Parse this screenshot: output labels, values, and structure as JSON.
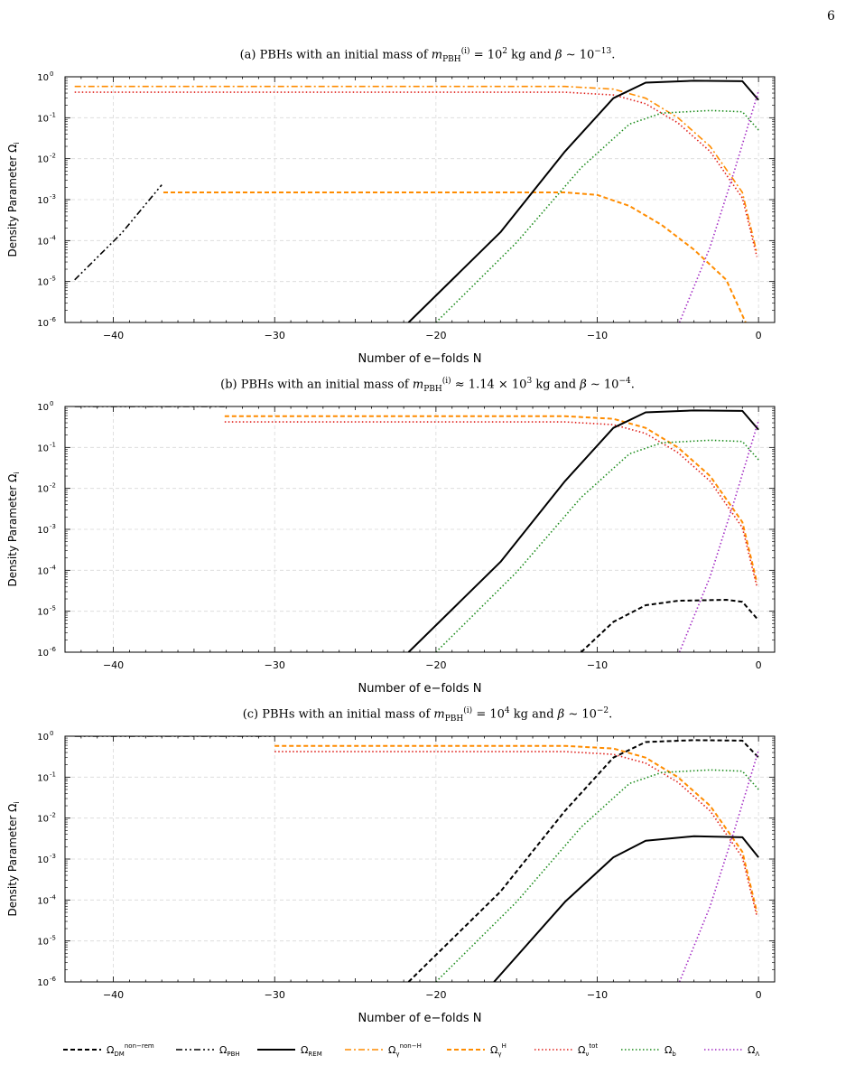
{
  "page_number": "6",
  "colors": {
    "dm_nonrem": "#000000",
    "pbh": "#000000",
    "rem": "#000000",
    "gamma_nonH": "#ff8c00",
    "gamma_H": "#ff8c00",
    "nu_tot": "#e0201b",
    "b": "#1c8c1c",
    "lambda": "#a32cc4"
  },
  "legend": [
    {
      "key": "dm_nonrem",
      "label_main": "Ω",
      "label_sub": "DM",
      "label_sup": "non−rem",
      "style": "dashed"
    },
    {
      "key": "pbh",
      "label_main": "Ω",
      "label_sub": "PBH",
      "label_sup": "",
      "style": "dashdotdot"
    },
    {
      "key": "rem",
      "label_main": "Ω",
      "label_sub": "REM",
      "label_sup": "",
      "style": "solid"
    },
    {
      "key": "gamma_nonH",
      "label_main": "Ω",
      "label_sub": "γ",
      "label_sup": "non−H",
      "style": "dashdot"
    },
    {
      "key": "gamma_H",
      "label_main": "Ω",
      "label_sub": "γ",
      "label_sup": "H",
      "style": "dashed"
    },
    {
      "key": "nu_tot",
      "label_main": "Ω",
      "label_sub": "ν",
      "label_sup": "tot",
      "style": "dotted"
    },
    {
      "key": "b",
      "label_main": "Ω",
      "label_sub": "b",
      "label_sup": "",
      "style": "dotted"
    },
    {
      "key": "lambda",
      "label_main": "Ω",
      "label_sub": "Λ",
      "label_sup": "",
      "style": "dotted"
    }
  ],
  "chart_data": [
    {
      "type": "line",
      "title_prefix": "(a) PBHs with an initial mass of",
      "title_math": "m_PBH^(i) = 10^2 kg and β ~ 10^−13.",
      "title_mass": "= 10",
      "title_mass_exp": "2",
      "title_beta_exp": "−13",
      "xlabel": "Number of e−folds N",
      "ylabel": "Density Parameter Ω",
      "ylabel_sub": "i",
      "xlim": [
        -43,
        1
      ],
      "ylim_log10": [
        -6,
        0
      ],
      "xticks": [
        -40,
        -30,
        -20,
        -10,
        0
      ],
      "yticks": [
        {
          "exp": -6,
          "label": "10",
          "sup": "-6"
        },
        {
          "exp": -5,
          "label": "10",
          "sup": "-5"
        },
        {
          "exp": -4,
          "label": "10",
          "sup": "-4"
        },
        {
          "exp": -3,
          "label": "10",
          "sup": "-3"
        },
        {
          "exp": -2,
          "label": "10",
          "sup": "-2"
        },
        {
          "exp": -1,
          "label": "10",
          "sup": "-1"
        },
        {
          "exp": 0,
          "label": "10",
          "sup": "0"
        }
      ],
      "grid": true,
      "series": [
        {
          "key": "pbh",
          "style": "dashdotdot",
          "points": [
            [
              -42.4,
              1.1e-05
            ],
            [
              -39.5,
              0.00015
            ],
            [
              -37.0,
              0.0023
            ]
          ]
        },
        {
          "key": "gamma_nonH",
          "style": "dashdot",
          "points": [
            [
              -42.4,
              0.58
            ],
            [
              -12,
              0.58
            ],
            [
              -9,
              0.5
            ],
            [
              -7,
              0.3
            ],
            [
              -5,
              0.1
            ],
            [
              -3,
              0.02
            ],
            [
              -1,
              0.0015
            ],
            [
              -0.1,
              5e-05
            ]
          ]
        },
        {
          "key": "nu_tot",
          "style": "dotted",
          "points": [
            [
              -42.4,
              0.42
            ],
            [
              -12,
              0.42
            ],
            [
              -9,
              0.36
            ],
            [
              -7,
              0.22
            ],
            [
              -5,
              0.075
            ],
            [
              -3,
              0.015
            ],
            [
              -1,
              0.0011
            ],
            [
              -0.1,
              4e-05
            ]
          ]
        },
        {
          "key": "gamma_H",
          "style": "dashed",
          "points": [
            [
              -36.9,
              0.0015
            ],
            [
              -12,
              0.0015
            ],
            [
              -10,
              0.0013
            ],
            [
              -8,
              0.0007
            ],
            [
              -6,
              0.00024
            ],
            [
              -4,
              6e-05
            ],
            [
              -2,
              1.1e-05
            ],
            [
              -0.8,
              1e-06
            ]
          ]
        },
        {
          "key": "rem",
          "style": "solid",
          "points": [
            [
              -21.7,
              1e-06
            ],
            [
              -16,
              0.00016
            ],
            [
              -12,
              0.015
            ],
            [
              -9,
              0.3
            ],
            [
              -7,
              0.72
            ],
            [
              -4,
              0.8
            ],
            [
              -1,
              0.78
            ],
            [
              0,
              0.27
            ]
          ]
        },
        {
          "key": "b",
          "style": "dotted",
          "points": [
            [
              -20,
              1e-06
            ],
            [
              -15,
              9e-05
            ],
            [
              -11,
              0.006
            ],
            [
              -8,
              0.07
            ],
            [
              -6,
              0.13
            ],
            [
              -3,
              0.15
            ],
            [
              -1,
              0.14
            ],
            [
              0,
              0.05
            ]
          ]
        },
        {
          "key": "lambda",
          "style": "dotted",
          "points": [
            [
              -4.9,
              1e-06
            ],
            [
              -3,
              7e-05
            ],
            [
              -1.5,
              0.005
            ],
            [
              0,
              0.45
            ]
          ]
        }
      ]
    },
    {
      "type": "line",
      "title_prefix": "(b) PBHs with an initial mass of",
      "title_math": "m_PBH^(i) ≈ 1.14 × 10^3 kg and β ~ 10^−4.",
      "title_mass": "≈ 1.14 × 10",
      "title_mass_exp": "3",
      "title_beta_exp": "−4",
      "xlabel": "Number of e−folds N",
      "ylabel": "Density Parameter Ω",
      "ylabel_sub": "i",
      "xlim": [
        -43,
        1
      ],
      "ylim_log10": [
        -6,
        0
      ],
      "xticks": [
        -40,
        -30,
        -20,
        -10,
        0
      ],
      "yticks": [
        {
          "exp": -6,
          "label": "10",
          "sup": "-6"
        },
        {
          "exp": -5,
          "label": "10",
          "sup": "-5"
        },
        {
          "exp": -4,
          "label": "10",
          "sup": "-4"
        },
        {
          "exp": -3,
          "label": "10",
          "sup": "-3"
        },
        {
          "exp": -2,
          "label": "10",
          "sup": "-2"
        },
        {
          "exp": -1,
          "label": "10",
          "sup": "-1"
        },
        {
          "exp": 0,
          "label": "10",
          "sup": "0"
        }
      ],
      "grid": true,
      "series": [
        {
          "key": "pbh",
          "style": "dashdotdot",
          "points": [
            [
              -42.4,
              1.0
            ],
            [
              -33.1,
              1.0
            ]
          ]
        },
        {
          "key": "gamma_H",
          "style": "dashed",
          "points": [
            [
              -33.1,
              0.58
            ],
            [
              -12,
              0.58
            ],
            [
              -9,
              0.5
            ],
            [
              -7,
              0.3
            ],
            [
              -5,
              0.1
            ],
            [
              -3,
              0.02
            ],
            [
              -1,
              0.0015
            ],
            [
              -0.1,
              5e-05
            ]
          ]
        },
        {
          "key": "nu_tot",
          "style": "dotted",
          "points": [
            [
              -33.1,
              0.42
            ],
            [
              -12,
              0.42
            ],
            [
              -9,
              0.36
            ],
            [
              -7,
              0.22
            ],
            [
              -5,
              0.075
            ],
            [
              -3,
              0.015
            ],
            [
              -1,
              0.0011
            ],
            [
              -0.1,
              4e-05
            ]
          ]
        },
        {
          "key": "rem",
          "style": "solid",
          "points": [
            [
              -21.7,
              1e-06
            ],
            [
              -16,
              0.00016
            ],
            [
              -12,
              0.015
            ],
            [
              -9,
              0.3
            ],
            [
              -7,
              0.72
            ],
            [
              -4,
              0.8
            ],
            [
              -1,
              0.78
            ],
            [
              0,
              0.27
            ]
          ]
        },
        {
          "key": "b",
          "style": "dotted",
          "points": [
            [
              -20,
              1e-06
            ],
            [
              -15,
              9e-05
            ],
            [
              -11,
              0.006
            ],
            [
              -8,
              0.07
            ],
            [
              -6,
              0.13
            ],
            [
              -3,
              0.15
            ],
            [
              -1,
              0.14
            ],
            [
              0,
              0.05
            ]
          ]
        },
        {
          "key": "dm_nonrem",
          "style": "dashed",
          "points": [
            [
              -11,
              1e-06
            ],
            [
              -9,
              5.5e-06
            ],
            [
              -7,
              1.4e-05
            ],
            [
              -5,
              1.8e-05
            ],
            [
              -2,
              1.9e-05
            ],
            [
              -1,
              1.7e-05
            ],
            [
              0,
              6e-06
            ]
          ]
        },
        {
          "key": "lambda",
          "style": "dotted",
          "points": [
            [
              -4.9,
              1e-06
            ],
            [
              -3,
              7e-05
            ],
            [
              -1.5,
              0.005
            ],
            [
              0,
              0.45
            ]
          ]
        }
      ]
    },
    {
      "type": "line",
      "title_prefix": "(c) PBHs with an initial mass of",
      "title_math": "m_PBH^(i) = 10^4 kg and β ~ 10^−2.",
      "title_mass": "= 10",
      "title_mass_exp": "4",
      "title_beta_exp": "−2",
      "xlabel": "Number of e−folds N",
      "ylabel": "Density Parameter Ω",
      "ylabel_sub": "i",
      "xlim": [
        -43,
        1
      ],
      "ylim_log10": [
        -6,
        0
      ],
      "xticks": [
        -40,
        -30,
        -20,
        -10,
        0
      ],
      "yticks": [
        {
          "exp": -6,
          "label": "10",
          "sup": "-6"
        },
        {
          "exp": -5,
          "label": "10",
          "sup": "-5"
        },
        {
          "exp": -4,
          "label": "10",
          "sup": "-4"
        },
        {
          "exp": -3,
          "label": "10",
          "sup": "-3"
        },
        {
          "exp": -2,
          "label": "10",
          "sup": "-2"
        },
        {
          "exp": -1,
          "label": "10",
          "sup": "-1"
        },
        {
          "exp": 0,
          "label": "10",
          "sup": "0"
        }
      ],
      "grid": true,
      "series": [
        {
          "key": "pbh",
          "style": "dashdotdot",
          "points": [
            [
              -42.4,
              1.0
            ],
            [
              -30.0,
              1.0
            ]
          ]
        },
        {
          "key": "gamma_H",
          "style": "dashed",
          "points": [
            [
              -30.0,
              0.58
            ],
            [
              -12,
              0.58
            ],
            [
              -9,
              0.5
            ],
            [
              -7,
              0.3
            ],
            [
              -5,
              0.1
            ],
            [
              -3,
              0.02
            ],
            [
              -1,
              0.0015
            ],
            [
              -0.1,
              5e-05
            ]
          ]
        },
        {
          "key": "nu_tot",
          "style": "dotted",
          "points": [
            [
              -30.0,
              0.42
            ],
            [
              -12,
              0.42
            ],
            [
              -9,
              0.36
            ],
            [
              -7,
              0.22
            ],
            [
              -5,
              0.075
            ],
            [
              -3,
              0.015
            ],
            [
              -1,
              0.0011
            ],
            [
              -0.1,
              4e-05
            ]
          ]
        },
        {
          "key": "dm_nonrem",
          "style": "dashed",
          "points": [
            [
              -21.7,
              1e-06
            ],
            [
              -16,
              0.00016
            ],
            [
              -12,
              0.015
            ],
            [
              -9,
              0.3
            ],
            [
              -7,
              0.72
            ],
            [
              -4,
              0.8
            ],
            [
              -1,
              0.78
            ],
            [
              0,
              0.3
            ]
          ]
        },
        {
          "key": "b",
          "style": "dotted",
          "points": [
            [
              -20,
              1e-06
            ],
            [
              -15,
              9e-05
            ],
            [
              -11,
              0.006
            ],
            [
              -8,
              0.07
            ],
            [
              -6,
              0.13
            ],
            [
              -3,
              0.15
            ],
            [
              -1,
              0.14
            ],
            [
              0,
              0.05
            ]
          ]
        },
        {
          "key": "rem",
          "style": "solid",
          "points": [
            [
              -16.4,
              1e-06
            ],
            [
              -12,
              9e-05
            ],
            [
              -9,
              0.0011
            ],
            [
              -7,
              0.0028
            ],
            [
              -4,
              0.0036
            ],
            [
              -1,
              0.0034
            ],
            [
              0,
              0.0011
            ]
          ]
        },
        {
          "key": "lambda",
          "style": "dotted",
          "points": [
            [
              -4.9,
              1e-06
            ],
            [
              -3,
              7e-05
            ],
            [
              -1.5,
              0.005
            ],
            [
              0,
              0.45
            ]
          ]
        }
      ]
    }
  ]
}
